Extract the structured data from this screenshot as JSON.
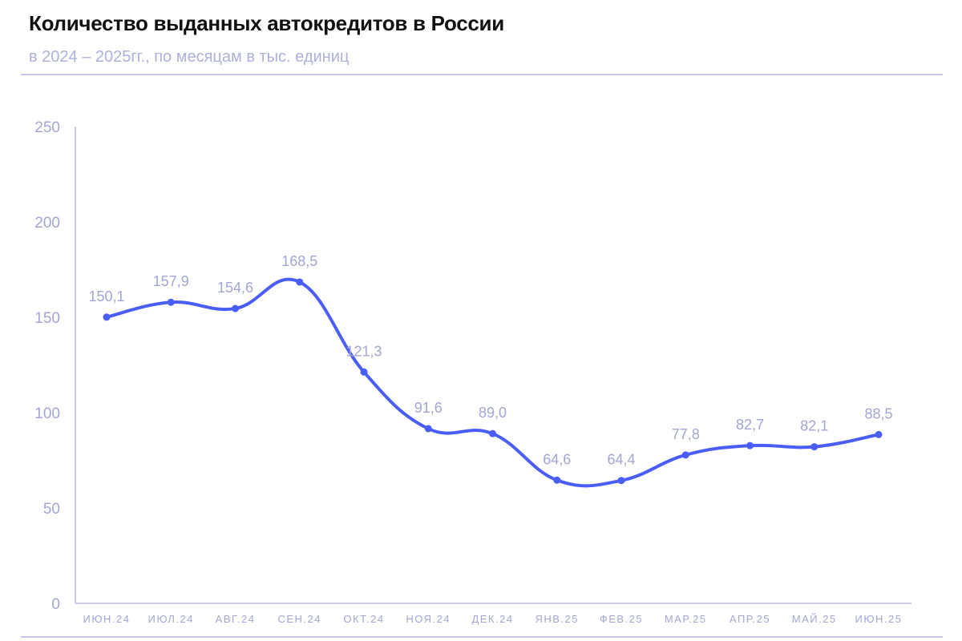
{
  "chart_data": {
    "type": "line",
    "title": "Количество выданных автокредитов в России",
    "subtitle": "в 2024 – 2025гг., по месяцам в тыс. единиц",
    "categories": [
      "ИЮН.24",
      "ИЮЛ.24",
      "АВГ.24",
      "СЕН.24",
      "ОКТ.24",
      "НОЯ.24",
      "ДЕК.24",
      "ЯНВ.25",
      "ФЕВ.25",
      "МАР.25",
      "АПР.25",
      "МАЙ.25",
      "ИЮН.25"
    ],
    "values": [
      150.1,
      157.9,
      154.6,
      168.5,
      121.3,
      91.6,
      89.0,
      64.6,
      64.4,
      77.8,
      82.7,
      82.1,
      88.5
    ],
    "labels": [
      "150,1",
      "157,9",
      "154,6",
      "168,5",
      "121,3",
      "91,6",
      "89,0",
      "64,6",
      "64,4",
      "77,8",
      "82,7",
      "82,1",
      "88,5"
    ],
    "yticks": [
      0,
      50,
      100,
      150,
      200,
      250
    ],
    "ylim": [
      0,
      250
    ],
    "grid": false,
    "xlabel": "",
    "ylabel": "",
    "colors": {
      "line": "#4a5ef5",
      "label": "#a3a6d2",
      "axis": "#b9bce0"
    }
  }
}
